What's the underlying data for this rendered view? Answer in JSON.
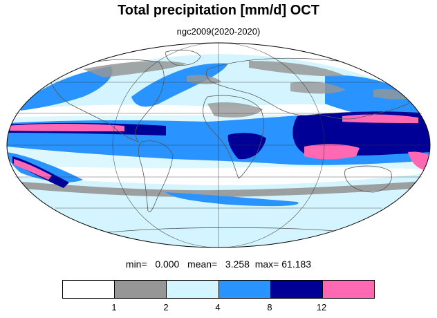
{
  "title": "Total precipitation [mm/d] OCT",
  "subtitle": "ngc2009(2020-2020)",
  "stats": {
    "min_label": "min=",
    "min_value": "0.000",
    "mean_label": "mean=",
    "mean_value": "3.258",
    "max_label": "max=",
    "max_value": "61.183"
  },
  "colorbar": {
    "colors": [
      "#ffffff",
      "#969696",
      "#d4f5ff",
      "#2994ff",
      "#000096",
      "#ff69b4"
    ],
    "tick_labels": [
      "1",
      "2",
      "4",
      "8",
      "12"
    ]
  },
  "map": {
    "projection": "mollweide",
    "ocean_base_color": "#ffffff",
    "coastline_color": "#555555"
  }
}
